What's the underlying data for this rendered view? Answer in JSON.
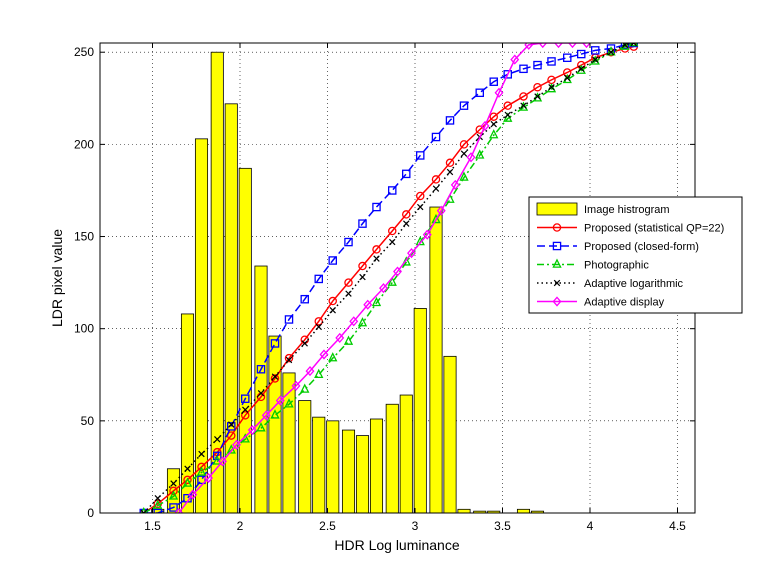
{
  "chart_data": {
    "type": "bar+line",
    "xlabel": "HDR Log luminance",
    "ylabel": "LDR pixel value",
    "xlim": [
      1.2,
      4.6
    ],
    "ylim": [
      0,
      255
    ],
    "xticks": [
      "1.5",
      "2",
      "2.5",
      "3",
      "3.5",
      "4",
      "4.5"
    ],
    "xtick_values": [
      1.5,
      2,
      2.5,
      3,
      3.5,
      4,
      4.5
    ],
    "yticks": [
      "0",
      "50",
      "100",
      "150",
      "200",
      "250"
    ],
    "ytick_values": [
      0,
      50,
      100,
      150,
      200,
      250
    ],
    "grid": true,
    "legend_position": "right",
    "histogram": {
      "name": "Image histrogram",
      "color": "#ffff00",
      "edge_color": "#000000",
      "bar_width": 0.07,
      "x": [
        1.45,
        1.53,
        1.62,
        1.7,
        1.78,
        1.87,
        1.95,
        2.03,
        2.12,
        2.2,
        2.28,
        2.37,
        2.45,
        2.53,
        2.62,
        2.7,
        2.78,
        2.87,
        2.95,
        3.03,
        3.12,
        3.2,
        3.28,
        3.37,
        3.45,
        3.53,
        3.62,
        3.7,
        3.78,
        3.87,
        3.95,
        4.03,
        4.12,
        4.2,
        4.28
      ],
      "values": [
        0,
        2,
        24,
        108,
        203,
        250,
        222,
        187,
        134,
        96,
        76,
        61,
        52,
        50,
        45,
        42,
        51,
        59,
        64,
        111,
        166,
        85,
        2,
        1,
        1,
        0,
        2,
        1,
        0,
        0,
        0,
        0,
        0,
        0,
        0
      ]
    },
    "series": [
      {
        "name": "Proposed (statistical QP=22)",
        "color": "#ff0000",
        "line_style": "solid",
        "marker": "circle",
        "x": [
          1.45,
          1.53,
          1.62,
          1.7,
          1.78,
          1.87,
          1.95,
          2.03,
          2.12,
          2.2,
          2.28,
          2.37,
          2.45,
          2.53,
          2.62,
          2.7,
          2.78,
          2.87,
          2.95,
          3.03,
          3.12,
          3.2,
          3.28,
          3.37,
          3.45,
          3.53,
          3.62,
          3.7,
          3.78,
          3.87,
          3.95,
          4.03,
          4.12,
          4.2,
          4.25
        ],
        "y": [
          0,
          5,
          12,
          18,
          25,
          33,
          42,
          53,
          63,
          73,
          84,
          94,
          104,
          115,
          125,
          134,
          143,
          153,
          162,
          172,
          181,
          190,
          200,
          208,
          215,
          221,
          226,
          231,
          235,
          239,
          243,
          247,
          250,
          252,
          253
        ]
      },
      {
        "name": "Proposed (closed-form)",
        "color": "#0000ff",
        "line_style": "dashed",
        "marker": "square",
        "x": [
          1.45,
          1.53,
          1.62,
          1.7,
          1.78,
          1.87,
          1.95,
          2.03,
          2.12,
          2.2,
          2.28,
          2.37,
          2.45,
          2.53,
          2.62,
          2.7,
          2.78,
          2.87,
          2.95,
          3.03,
          3.12,
          3.2,
          3.28,
          3.37,
          3.45,
          3.53,
          3.62,
          3.7,
          3.78,
          3.87,
          3.95,
          4.03,
          4.12,
          4.2,
          4.25
        ],
        "y": [
          0,
          0,
          3,
          8,
          18,
          31,
          47,
          62,
          78,
          92,
          105,
          116,
          127,
          137,
          147,
          157,
          166,
          175,
          184,
          194,
          204,
          213,
          221,
          228,
          234,
          238,
          241,
          243,
          245,
          247,
          249,
          251,
          252,
          254,
          255
        ]
      },
      {
        "name": "Photographic",
        "color": "#00cc00",
        "line_style": "dashdot",
        "marker": "triangle",
        "x": [
          1.45,
          1.53,
          1.62,
          1.7,
          1.78,
          1.87,
          1.95,
          2.03,
          2.12,
          2.2,
          2.28,
          2.37,
          2.45,
          2.53,
          2.62,
          2.7,
          2.78,
          2.87,
          2.95,
          3.03,
          3.12,
          3.2,
          3.28,
          3.37,
          3.45,
          3.53,
          3.62,
          3.7,
          3.78,
          3.87,
          3.95,
          4.03,
          4.12,
          4.2,
          4.25
        ],
        "y": [
          0,
          4,
          9,
          16,
          22,
          28,
          34,
          40,
          46,
          53,
          59,
          67,
          75,
          84,
          93,
          103,
          114,
          125,
          136,
          147,
          159,
          170,
          182,
          194,
          205,
          214,
          220,
          225,
          230,
          235,
          240,
          245,
          250,
          253,
          255
        ]
      },
      {
        "name": "Adaptive logarithmic",
        "color": "#000000",
        "line_style": "dotted",
        "marker": "x",
        "x": [
          1.45,
          1.53,
          1.62,
          1.7,
          1.78,
          1.87,
          1.95,
          2.03,
          2.12,
          2.2,
          2.28,
          2.37,
          2.45,
          2.53,
          2.62,
          2.7,
          2.78,
          2.87,
          2.95,
          3.03,
          3.12,
          3.2,
          3.28,
          3.37,
          3.45,
          3.53,
          3.62,
          3.7,
          3.78,
          3.87,
          3.95,
          4.03,
          4.12,
          4.2,
          4.25
        ],
        "y": [
          0,
          8,
          16,
          24,
          32,
          40,
          48,
          56,
          65,
          74,
          83,
          92,
          101,
          110,
          119,
          128,
          138,
          147,
          157,
          166,
          176,
          185,
          195,
          204,
          211,
          216,
          221,
          226,
          231,
          236,
          241,
          246,
          250,
          254,
          255
        ]
      },
      {
        "name": "Adaptive display",
        "color": "#ff00ff",
        "line_style": "solid",
        "marker": "diamond",
        "x": [
          1.65,
          1.73,
          1.82,
          1.9,
          1.98,
          2.07,
          2.15,
          2.23,
          2.32,
          2.4,
          2.48,
          2.57,
          2.65,
          2.73,
          2.82,
          2.9,
          2.98,
          3.07,
          3.15,
          3.23,
          3.32,
          3.4,
          3.48,
          3.57,
          3.65,
          3.73,
          3.82,
          3.9,
          3.98
        ],
        "y": [
          0,
          10,
          19,
          28,
          37,
          45,
          53,
          61,
          69,
          77,
          86,
          95,
          104,
          113,
          122,
          131,
          141,
          151,
          164,
          178,
          193,
          210,
          228,
          246,
          254,
          255,
          255,
          255,
          255
        ]
      }
    ]
  }
}
